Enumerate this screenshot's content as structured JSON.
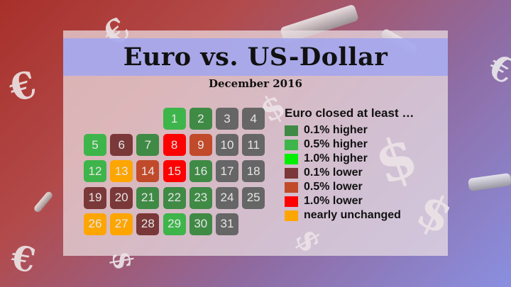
{
  "title": "Euro vs. US-Dollar",
  "subtitle": "December 2016",
  "legend": {
    "title": "Euro closed at least …",
    "items": [
      {
        "label": "0.1% higher",
        "color": "#3f8a45"
      },
      {
        "label": "0.5% higher",
        "color": "#3db54a"
      },
      {
        "label": "1.0% higher",
        "color": "#00ee00"
      },
      {
        "label": "0.1% lower",
        "color": "#7a3838"
      },
      {
        "label": "0.5% lower",
        "color": "#c04a2a"
      },
      {
        "label": "1.0% lower",
        "color": "#ff0000"
      },
      {
        "label": "nearly unchanged",
        "color": "#ffa500"
      }
    ]
  },
  "days": [
    {
      "day": "1",
      "status": "0.5% higher"
    },
    {
      "day": "2",
      "status": "0.1% higher"
    },
    {
      "day": "3",
      "status": "no data"
    },
    {
      "day": "4",
      "status": "no data"
    },
    {
      "day": "5",
      "status": "0.5% higher"
    },
    {
      "day": "6",
      "status": "0.1% lower"
    },
    {
      "day": "7",
      "status": "0.1% higher"
    },
    {
      "day": "8",
      "status": "1.0% lower"
    },
    {
      "day": "9",
      "status": "0.5% lower"
    },
    {
      "day": "10",
      "status": "no data"
    },
    {
      "day": "11",
      "status": "no data"
    },
    {
      "day": "12",
      "status": "0.5% higher"
    },
    {
      "day": "13",
      "status": "nearly unchanged"
    },
    {
      "day": "14",
      "status": "0.5% lower"
    },
    {
      "day": "15",
      "status": "1.0% lower"
    },
    {
      "day": "16",
      "status": "0.1% higher"
    },
    {
      "day": "17",
      "status": "no data"
    },
    {
      "day": "18",
      "status": "no data"
    },
    {
      "day": "19",
      "status": "0.1% lower"
    },
    {
      "day": "20",
      "status": "0.1% lower"
    },
    {
      "day": "21",
      "status": "0.1% higher"
    },
    {
      "day": "22",
      "status": "0.1% higher"
    },
    {
      "day": "23",
      "status": "0.1% higher"
    },
    {
      "day": "24",
      "status": "no data"
    },
    {
      "day": "25",
      "status": "no data"
    },
    {
      "day": "26",
      "status": "nearly unchanged"
    },
    {
      "day": "27",
      "status": "nearly unchanged"
    },
    {
      "day": "28",
      "status": "0.1% lower"
    },
    {
      "day": "29",
      "status": "0.5% higher"
    },
    {
      "day": "30",
      "status": "0.1% higher"
    },
    {
      "day": "31",
      "status": "no data"
    }
  ],
  "colors": {
    "no data": "#666666",
    "0.1% higher": "#3f8a45",
    "0.5% higher": "#3db54a",
    "1.0% higher": "#00ee00",
    "0.1% lower": "#7a3838",
    "0.5% lower": "#c04a2a",
    "1.0% lower": "#ff0000",
    "nearly unchanged": "#ffa500"
  },
  "decorations": {
    "euro_icon": "euro-sign-icon",
    "dollar_icon": "dollar-sign-icon"
  }
}
